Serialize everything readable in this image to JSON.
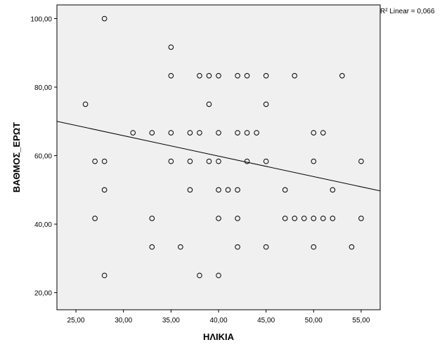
{
  "chart_data": {
    "type": "scatter",
    "title": "",
    "xlabel": "ΗΛΙΚΙΑ",
    "ylabel": "ΒΑΘΜΟΣ_ΕΡΩΤ",
    "xlim": [
      23,
      57
    ],
    "ylim": [
      15,
      104
    ],
    "x_ticks": [
      25,
      30,
      35,
      40,
      45,
      50,
      55
    ],
    "x_tick_labels": [
      "25,00",
      "30,00",
      "35,00",
      "40,00",
      "45,00",
      "50,00",
      "55,00"
    ],
    "y_ticks": [
      20,
      40,
      60,
      80,
      100
    ],
    "y_tick_labels": [
      "20,00",
      "40,00",
      "60,00",
      "80,00",
      "100,00"
    ],
    "r2_label": "R² Linear = 0,066",
    "grid": false,
    "plot_background": "#f0f0f0",
    "marker_color": "#000000",
    "fit_line": {
      "x": [
        23,
        57
      ],
      "y": [
        70.0,
        49.7
      ]
    },
    "points": [
      {
        "x": 28,
        "y": 100
      },
      {
        "x": 35,
        "y": 91.67
      },
      {
        "x": 26,
        "y": 75
      },
      {
        "x": 39,
        "y": 75
      },
      {
        "x": 45,
        "y": 75
      },
      {
        "x": 35,
        "y": 83.33
      },
      {
        "x": 38,
        "y": 83.33
      },
      {
        "x": 39,
        "y": 83.33
      },
      {
        "x": 40,
        "y": 83.33
      },
      {
        "x": 42,
        "y": 83.33
      },
      {
        "x": 43,
        "y": 83.33
      },
      {
        "x": 45,
        "y": 83.33
      },
      {
        "x": 48,
        "y": 83.33
      },
      {
        "x": 53,
        "y": 83.33
      },
      {
        "x": 31,
        "y": 66.67
      },
      {
        "x": 33,
        "y": 66.67
      },
      {
        "x": 35,
        "y": 66.67
      },
      {
        "x": 37,
        "y": 66.67
      },
      {
        "x": 38,
        "y": 66.67
      },
      {
        "x": 40,
        "y": 66.67
      },
      {
        "x": 42,
        "y": 66.67
      },
      {
        "x": 43,
        "y": 66.67
      },
      {
        "x": 44,
        "y": 66.67
      },
      {
        "x": 50,
        "y": 66.67
      },
      {
        "x": 51,
        "y": 66.67
      },
      {
        "x": 27,
        "y": 58.33
      },
      {
        "x": 28,
        "y": 58.33
      },
      {
        "x": 35,
        "y": 58.33
      },
      {
        "x": 37,
        "y": 58.33
      },
      {
        "x": 39,
        "y": 58.33
      },
      {
        "x": 40,
        "y": 58.33
      },
      {
        "x": 43,
        "y": 58.33
      },
      {
        "x": 45,
        "y": 58.33
      },
      {
        "x": 50,
        "y": 58.33
      },
      {
        "x": 55,
        "y": 58.33
      },
      {
        "x": 28,
        "y": 50
      },
      {
        "x": 37,
        "y": 50
      },
      {
        "x": 40,
        "y": 50
      },
      {
        "x": 41,
        "y": 50
      },
      {
        "x": 42,
        "y": 50
      },
      {
        "x": 47,
        "y": 50
      },
      {
        "x": 52,
        "y": 50
      },
      {
        "x": 27,
        "y": 41.67
      },
      {
        "x": 33,
        "y": 41.67
      },
      {
        "x": 40,
        "y": 41.67
      },
      {
        "x": 42,
        "y": 41.67
      },
      {
        "x": 47,
        "y": 41.67
      },
      {
        "x": 48,
        "y": 41.67
      },
      {
        "x": 49,
        "y": 41.67
      },
      {
        "x": 50,
        "y": 41.67
      },
      {
        "x": 51,
        "y": 41.67
      },
      {
        "x": 52,
        "y": 41.67
      },
      {
        "x": 55,
        "y": 41.67
      },
      {
        "x": 33,
        "y": 33.33
      },
      {
        "x": 36,
        "y": 33.33
      },
      {
        "x": 42,
        "y": 33.33
      },
      {
        "x": 45,
        "y": 33.33
      },
      {
        "x": 50,
        "y": 33.33
      },
      {
        "x": 54,
        "y": 33.33
      },
      {
        "x": 28,
        "y": 25
      },
      {
        "x": 38,
        "y": 25
      },
      {
        "x": 40,
        "y": 25
      }
    ]
  }
}
